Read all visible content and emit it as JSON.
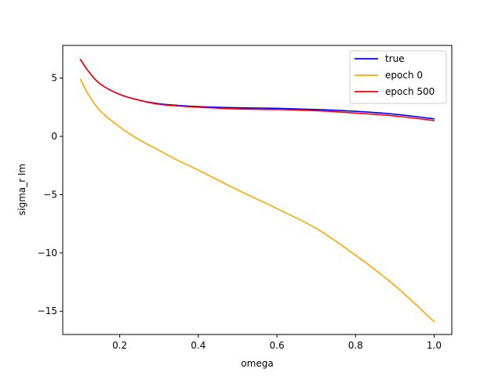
{
  "chart_data": {
    "type": "line",
    "xlabel": "omega",
    "ylabel": "sigma_r Im",
    "xlim": [
      0.055,
      1.045
    ],
    "ylim": [
      -17.0,
      7.8
    ],
    "xticks": [
      0.2,
      0.4,
      0.6,
      0.8,
      1.0
    ],
    "xtick_labels": [
      "0.2",
      "0.4",
      "0.6",
      "0.8",
      "1.0"
    ],
    "yticks": [
      5,
      0,
      -5,
      -10,
      -15
    ],
    "ytick_labels": [
      "5",
      "0",
      "−5",
      "−10",
      "−15"
    ],
    "grid": false,
    "legend_position": "top-right",
    "series": [
      {
        "name": "true",
        "color": "#0000ff",
        "x": [
          0.1,
          0.12,
          0.15,
          0.2,
          0.25,
          0.3,
          0.35,
          0.4,
          0.5,
          0.6,
          0.7,
          0.8,
          0.9,
          1.0
        ],
        "y": [
          6.6,
          5.6,
          4.5,
          3.6,
          3.1,
          2.8,
          2.65,
          2.55,
          2.45,
          2.4,
          2.3,
          2.15,
          1.9,
          1.5
        ]
      },
      {
        "name": "epoch 0",
        "color": "#ffa500",
        "x": [
          0.1,
          0.12,
          0.15,
          0.2,
          0.25,
          0.3,
          0.35,
          0.4,
          0.5,
          0.6,
          0.7,
          0.8,
          0.9,
          1.0
        ],
        "y": [
          4.9,
          3.6,
          2.2,
          0.8,
          -0.3,
          -1.2,
          -2.1,
          -2.9,
          -4.6,
          -6.2,
          -7.9,
          -10.2,
          -12.8,
          -15.9
        ]
      },
      {
        "name": "epoch 500",
        "color": "#ff0000",
        "x": [
          0.1,
          0.12,
          0.15,
          0.2,
          0.25,
          0.3,
          0.35,
          0.4,
          0.5,
          0.6,
          0.7,
          0.8,
          0.9,
          1.0
        ],
        "y": [
          6.6,
          5.6,
          4.5,
          3.6,
          3.1,
          2.75,
          2.6,
          2.5,
          2.35,
          2.3,
          2.2,
          2.0,
          1.75,
          1.35
        ]
      }
    ]
  }
}
